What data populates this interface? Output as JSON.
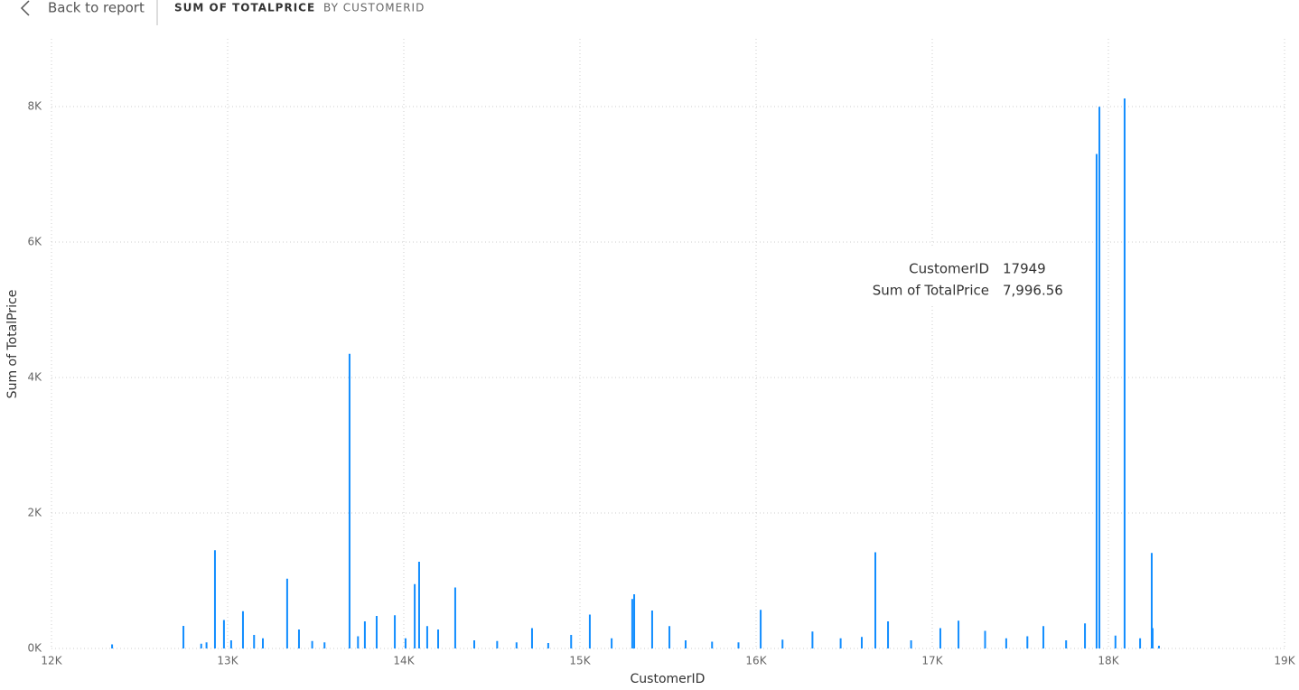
{
  "header": {
    "back": "Back to report",
    "title": "SUM OF TOTALPRICE",
    "subtitle": "BY CUSTOMERID"
  },
  "chart_data": {
    "type": "bar",
    "x_label": "CustomerID",
    "y_label": "Sum of TotalPrice",
    "color": "#118dff",
    "grid": true,
    "x": [
      12344,
      12749,
      12850,
      12880,
      12928,
      12979,
      13020,
      13087,
      13150,
      13200,
      13338,
      13405,
      13480,
      13550,
      13692,
      13740,
      13779,
      13846,
      13949,
      14010,
      14062,
      14087,
      14133,
      14195,
      14292,
      14400,
      14530,
      14640,
      14728,
      14820,
      14950,
      15056,
      15180,
      15297,
      15308,
      15410,
      15508,
      15600,
      15750,
      15900,
      16026,
      16150,
      16320,
      16480,
      16600,
      16677,
      16749,
      16880,
      17046,
      17149,
      17300,
      17420,
      17540,
      17631,
      17760,
      17867,
      17933,
      17949,
      18040,
      18092,
      18180,
      18246,
      18251,
      18287
    ],
    "values": [
      60,
      333,
      70,
      90,
      1450,
      420,
      120,
      550,
      200,
      150,
      1030,
      280,
      110,
      90,
      4350,
      180,
      400,
      480,
      490,
      150,
      950,
      1280,
      330,
      280,
      900,
      120,
      110,
      90,
      300,
      80,
      200,
      500,
      150,
      730,
      800,
      560,
      330,
      120,
      100,
      90,
      570,
      130,
      250,
      150,
      170,
      1420,
      400,
      120,
      300,
      410,
      260,
      150,
      180,
      330,
      120,
      370,
      7300,
      7996.56,
      190,
      8120,
      150,
      1410,
      300,
      40
    ],
    "xlim": [
      12000,
      19000
    ],
    "xticks": [
      {
        "value": 12000,
        "label": "12K"
      },
      {
        "value": 13000,
        "label": "13K"
      },
      {
        "value": 14000,
        "label": "14K"
      },
      {
        "value": 15000,
        "label": "15K"
      },
      {
        "value": 16000,
        "label": "16K"
      },
      {
        "value": 17000,
        "label": "17K"
      },
      {
        "value": 18000,
        "label": "18K"
      },
      {
        "value": 19000,
        "label": "19K"
      }
    ],
    "ylim": [
      0,
      9000
    ],
    "yticks": [
      {
        "value": 0,
        "label": "0K"
      },
      {
        "value": 2000,
        "label": "2K"
      },
      {
        "value": 4000,
        "label": "4K"
      },
      {
        "value": 6000,
        "label": "6K"
      },
      {
        "value": 8000,
        "label": "8K"
      }
    ],
    "tooltip": [
      {
        "label": "CustomerID",
        "value": "17949"
      },
      {
        "label": "Sum of TotalPrice",
        "value": "7,996.56"
      }
    ]
  }
}
